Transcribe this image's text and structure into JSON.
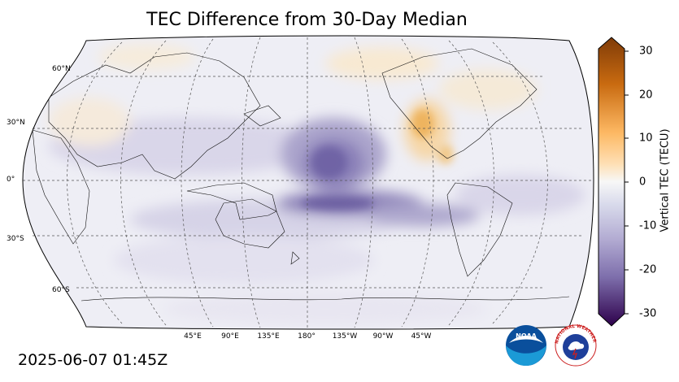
{
  "title": "TEC Difference from 30-Day Median",
  "timestamp": "2025-06-07 01:45Z",
  "map": {
    "projection": "Robinson",
    "center_longitude": 180,
    "gridlines": "dashed",
    "lat_labels": [
      "60°N",
      "30°N",
      "0°",
      "30°S",
      "60°S"
    ],
    "lon_labels": [
      "45°E",
      "90°E",
      "135°E",
      "180°",
      "135°W",
      "90°W",
      "45°W"
    ],
    "features": [
      {
        "name": "Strong negative anomaly west of Hawaii",
        "lat": 12,
        "lon": -165,
        "value": -20
      },
      {
        "name": "Southern negative band",
        "lat": -12,
        "lon": -160,
        "value": -22
      },
      {
        "name": "Negative anomaly over Indian Ocean",
        "lat": 12,
        "lon": 75,
        "value": -8
      },
      {
        "name": "Positive anomaly over Mexico / Gulf",
        "lat": 22,
        "lon": -100,
        "value": 8
      }
    ]
  },
  "colorbar": {
    "label": "Vertical TEC (TECU)",
    "min": -30,
    "max": 30,
    "ticks": [
      "30",
      "20",
      "10",
      "0",
      "-10",
      "-20",
      "-30"
    ],
    "colors": {
      "negative": "#2d004b",
      "neutral": "#f7f7f7",
      "positive": "#7f3b08"
    }
  },
  "logos": {
    "noaa_text": "NOAA",
    "nws_text": "NATIONAL WEATHER SERVICE"
  }
}
